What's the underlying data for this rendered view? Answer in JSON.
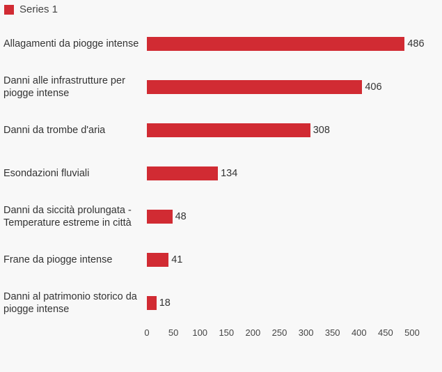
{
  "chart_data": {
    "type": "bar",
    "orientation": "horizontal",
    "legend": {
      "position": "top-left",
      "entries": [
        "Series 1"
      ]
    },
    "categories": [
      [
        "Allagamenti da piogge intense"
      ],
      [
        "Danni alle infrastrutture per",
        "piogge intense"
      ],
      [
        "Danni da trombe d'aria"
      ],
      [
        "Esondazioni fluviali"
      ],
      [
        "Danni da siccità prolungata -",
        "Temperature estreme in città"
      ],
      [
        "Frane da piogge intense"
      ],
      [
        "Danni al patrimonio storico da",
        "piogge intense"
      ]
    ],
    "series": [
      {
        "name": "Series 1",
        "values": [
          486,
          406,
          308,
          134,
          48,
          41,
          18
        ],
        "color": "#d12b33"
      }
    ],
    "xlim": [
      0,
      500
    ],
    "xticks": [
      0,
      50,
      100,
      150,
      200,
      250,
      300,
      350,
      400,
      450,
      500
    ],
    "grid": false,
    "title": "",
    "xlabel": "",
    "ylabel": ""
  }
}
